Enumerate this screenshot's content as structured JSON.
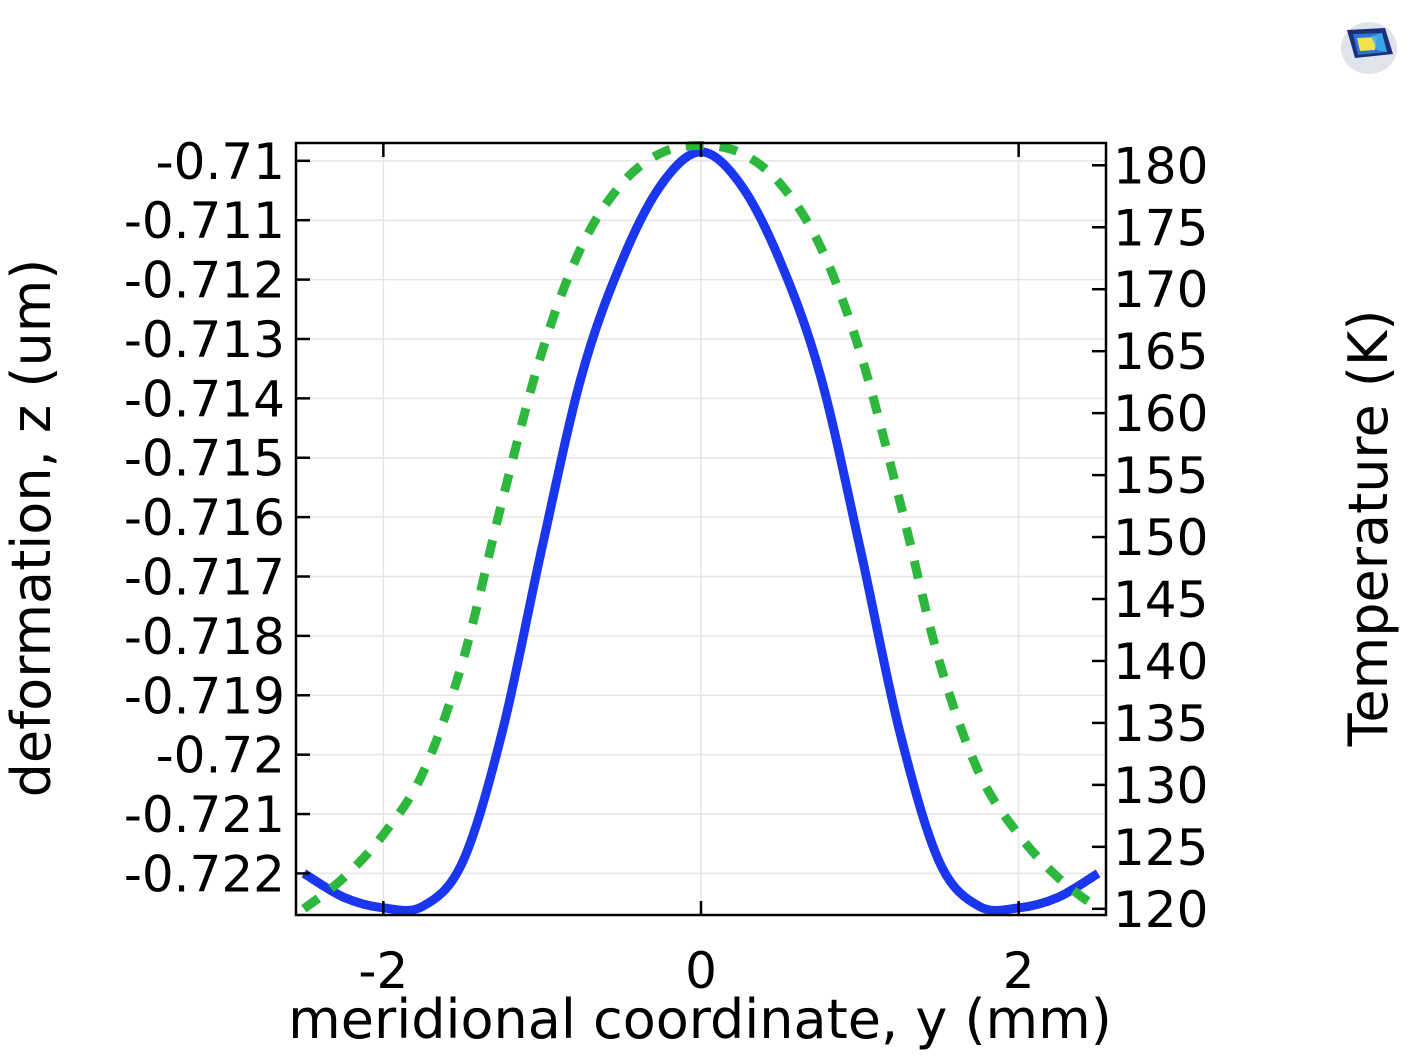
{
  "app_logo_icon": "comsol-logo-icon",
  "colors": {
    "deformation_line": "#1a36ee",
    "temperature_line": "#2db83d",
    "grid": "#e6e6e6",
    "axes": "#000000"
  },
  "chart_data": {
    "type": "line",
    "grid": true,
    "xlabel": "meridional coordinate, y (mm)",
    "ylabel": "deformation, z (um)",
    "ylabel_right": "Temperature (K)",
    "xlim": [
      -2.55,
      2.55
    ],
    "ylim": [
      -0.7227,
      -0.7097
    ],
    "ylim_right": [
      119.5,
      181.8
    ],
    "x_ticks": [
      -2,
      0,
      2
    ],
    "x_tick_labels": [
      "-2",
      "0",
      "2"
    ],
    "y_ticks": [
      -0.71,
      -0.711,
      -0.712,
      -0.713,
      -0.714,
      -0.715,
      -0.716,
      -0.717,
      -0.718,
      -0.719,
      -0.72,
      -0.721,
      -0.722
    ],
    "y_tick_labels": [
      "-0.71",
      "-0.711",
      "-0.712",
      "-0.713",
      "-0.714",
      "-0.715",
      "-0.716",
      "-0.717",
      "-0.718",
      "-0.719",
      "-0.72",
      "-0.721",
      "-0.722"
    ],
    "y_right_ticks": [
      120,
      125,
      130,
      135,
      140,
      145,
      150,
      155,
      160,
      165,
      170,
      175,
      180
    ],
    "y_right_tick_labels": [
      "120",
      "125",
      "130",
      "135",
      "140",
      "145",
      "150",
      "155",
      "160",
      "165",
      "170",
      "175",
      "180"
    ],
    "series": [
      {
        "axis": "left",
        "style": "solid",
        "x": [
          -2.5,
          -2.25,
          -2.0,
          -1.75,
          -1.5,
          -1.25,
          -1.0,
          -0.75,
          -0.5,
          -0.25,
          0.0,
          0.25,
          0.5,
          0.75,
          1.0,
          1.25,
          1.5,
          1.75,
          2.0,
          2.25,
          2.5
        ],
        "values": [
          -0.722,
          -0.7224,
          -0.72258,
          -0.72255,
          -0.7218,
          -0.7196,
          -0.7165,
          -0.7136,
          -0.7117,
          -0.7104,
          -0.70985,
          -0.7104,
          -0.7117,
          -0.7136,
          -0.7165,
          -0.7196,
          -0.7218,
          -0.72255,
          -0.72258,
          -0.7224,
          -0.722
        ]
      },
      {
        "axis": "right",
        "style": "dashed",
        "x": [
          -2.5,
          -2.25,
          -2.0,
          -1.75,
          -1.5,
          -1.25,
          -1.0,
          -0.75,
          -0.5,
          -0.25,
          0.0,
          0.25,
          0.5,
          0.75,
          1.0,
          1.25,
          1.5,
          1.75,
          2.0,
          2.25,
          2.5
        ],
        "values": [
          120.0,
          122.5,
          126.0,
          131.0,
          140.0,
          153.0,
          165.0,
          173.5,
          178.5,
          181.0,
          181.6,
          181.0,
          178.5,
          173.5,
          165.0,
          153.0,
          140.0,
          131.0,
          126.0,
          122.5,
          120.0
        ]
      }
    ]
  }
}
